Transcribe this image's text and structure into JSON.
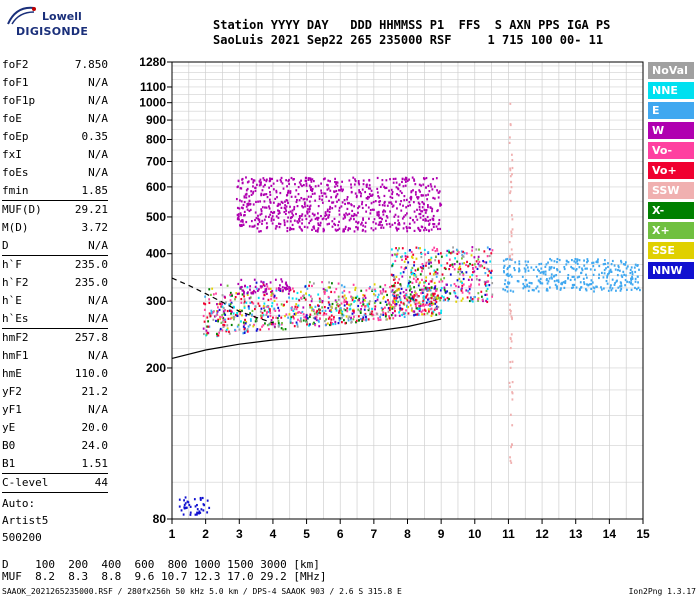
{
  "logo": {
    "line1": "Lowell",
    "line2": "DIGISONDE"
  },
  "header": {
    "line1": "Station YYYY DAY   DDD HHMMSS P1  FFS  S AXN PPS IGA PS",
    "line2": "SaoLuis 2021 Sep22 265 235000 RSF     1 715 100 00- 11"
  },
  "params": {
    "group1": [
      {
        "label": "foF2",
        "value": "7.850"
      },
      {
        "label": "foF1",
        "value": "N/A"
      },
      {
        "label": "foF1p",
        "value": "N/A"
      },
      {
        "label": "foE",
        "value": "N/A"
      },
      {
        "label": "foEp",
        "value": "0.35"
      },
      {
        "label": "fxI",
        "value": "N/A"
      },
      {
        "label": "foEs",
        "value": "N/A"
      },
      {
        "label": "fmin",
        "value": "1.85"
      }
    ],
    "group2": [
      {
        "label": "MUF(D)",
        "value": "29.21"
      },
      {
        "label": "M(D)",
        "value": "3.72"
      },
      {
        "label": "D",
        "value": "N/A"
      }
    ],
    "group3": [
      {
        "label": "h`F",
        "value": "235.0"
      },
      {
        "label": "h`F2",
        "value": "235.0"
      },
      {
        "label": "h`E",
        "value": "N/A"
      },
      {
        "label": "h`Es",
        "value": "N/A"
      }
    ],
    "group4": [
      {
        "label": "hmF2",
        "value": "257.8"
      },
      {
        "label": "hmF1",
        "value": "N/A"
      },
      {
        "label": "hmE",
        "value": "110.0"
      },
      {
        "label": "yF2",
        "value": "21.2"
      },
      {
        "label": "yF1",
        "value": "N/A"
      },
      {
        "label": "yE",
        "value": "20.0"
      },
      {
        "label": "B0",
        "value": "24.0"
      },
      {
        "label": "B1",
        "value": "1.51"
      }
    ],
    "group5": [
      {
        "label": "C-level",
        "value": "44"
      }
    ],
    "auto": [
      "Auto:",
      "Artist5",
      "500200"
    ]
  },
  "legend": [
    {
      "label": "NoVal",
      "color": "#a0a0a0"
    },
    {
      "label": "NNE",
      "color": "#00e0f0"
    },
    {
      "label": "E",
      "color": "#40a8f0"
    },
    {
      "label": "W",
      "color": "#b000b0"
    },
    {
      "label": "Vo-",
      "color": "#ff40a0"
    },
    {
      "label": "Vo+",
      "color": "#f00030"
    },
    {
      "label": "SSW",
      "color": "#f0b0b0"
    },
    {
      "label": "X-",
      "color": "#008000"
    },
    {
      "label": "X+",
      "color": "#70c040"
    },
    {
      "label": "SSE",
      "color": "#e0d000"
    },
    {
      "label": "NNW",
      "color": "#1010d0"
    }
  ],
  "bottom": {
    "line1": "D    100  200  400  600  800 1000 1500 3000 [km]",
    "line2": "MUF  8.2  8.3  8.8  9.6 10.7 12.3 17.0 29.2 [MHz]"
  },
  "footer": {
    "left": "SAAOK_2021265235000.RSF / 280fx256h 50 kHz 5.0 km / DPS-4 SAAOK 903 / 2.6 S 315.8 E",
    "right": "Ion2Png 1.3.17"
  },
  "chart_data": {
    "type": "scatter",
    "title": "",
    "xlabel": "",
    "ylabel": "",
    "xlim": [
      1,
      15
    ],
    "ylim": [
      80,
      1280
    ],
    "x_ticks": [
      1,
      2,
      3,
      4,
      5,
      6,
      7,
      8,
      9,
      10,
      11,
      12,
      13,
      14,
      15
    ],
    "y_ticks": [
      80,
      200,
      300,
      400,
      500,
      600,
      700,
      800,
      900,
      1000,
      1100,
      1280
    ],
    "y_scale": "log",
    "grid": true,
    "traces": [
      {
        "name": "",
        "style": "solid",
        "points": [
          [
            1,
            212
          ],
          [
            2,
            223
          ],
          [
            3,
            231
          ],
          [
            4,
            237
          ],
          [
            5,
            241
          ],
          [
            6,
            245
          ],
          [
            7,
            250
          ],
          [
            8,
            257
          ],
          [
            9,
            269
          ]
        ]
      },
      {
        "name": "",
        "style": "dashed",
        "points": [
          [
            1,
            345
          ],
          [
            1.5,
            330
          ],
          [
            2,
            314
          ],
          [
            2.5,
            298
          ],
          [
            3,
            282
          ],
          [
            3.5,
            272
          ],
          [
            4,
            263
          ]
        ]
      }
    ],
    "echo_regions": [
      {
        "color": "mixed",
        "x": [
          1.9,
          9.0
        ],
        "h": [
          242,
          345
        ],
        "note": "main F2 trace"
      },
      {
        "color": "mixed",
        "x": [
          7.5,
          10.5
        ],
        "h": [
          300,
          420
        ]
      },
      {
        "color": "#40a8f0",
        "x": [
          10.8,
          14.9
        ],
        "h": [
          320,
          390
        ]
      },
      {
        "color": "#b000b0",
        "x": [
          2.9,
          9.0
        ],
        "h": [
          460,
          640
        ]
      },
      {
        "color": "#b000b0",
        "x": [
          2.9,
          4.5
        ],
        "h": [
          315,
          345
        ]
      },
      {
        "color": "#1010d0",
        "x": [
          1.2,
          2.1
        ],
        "h": [
          82,
          92
        ]
      },
      {
        "color": "#f0b0b0",
        "x": [
          11.0,
          11.1
        ],
        "h": [
          110,
          1000
        ]
      }
    ]
  }
}
